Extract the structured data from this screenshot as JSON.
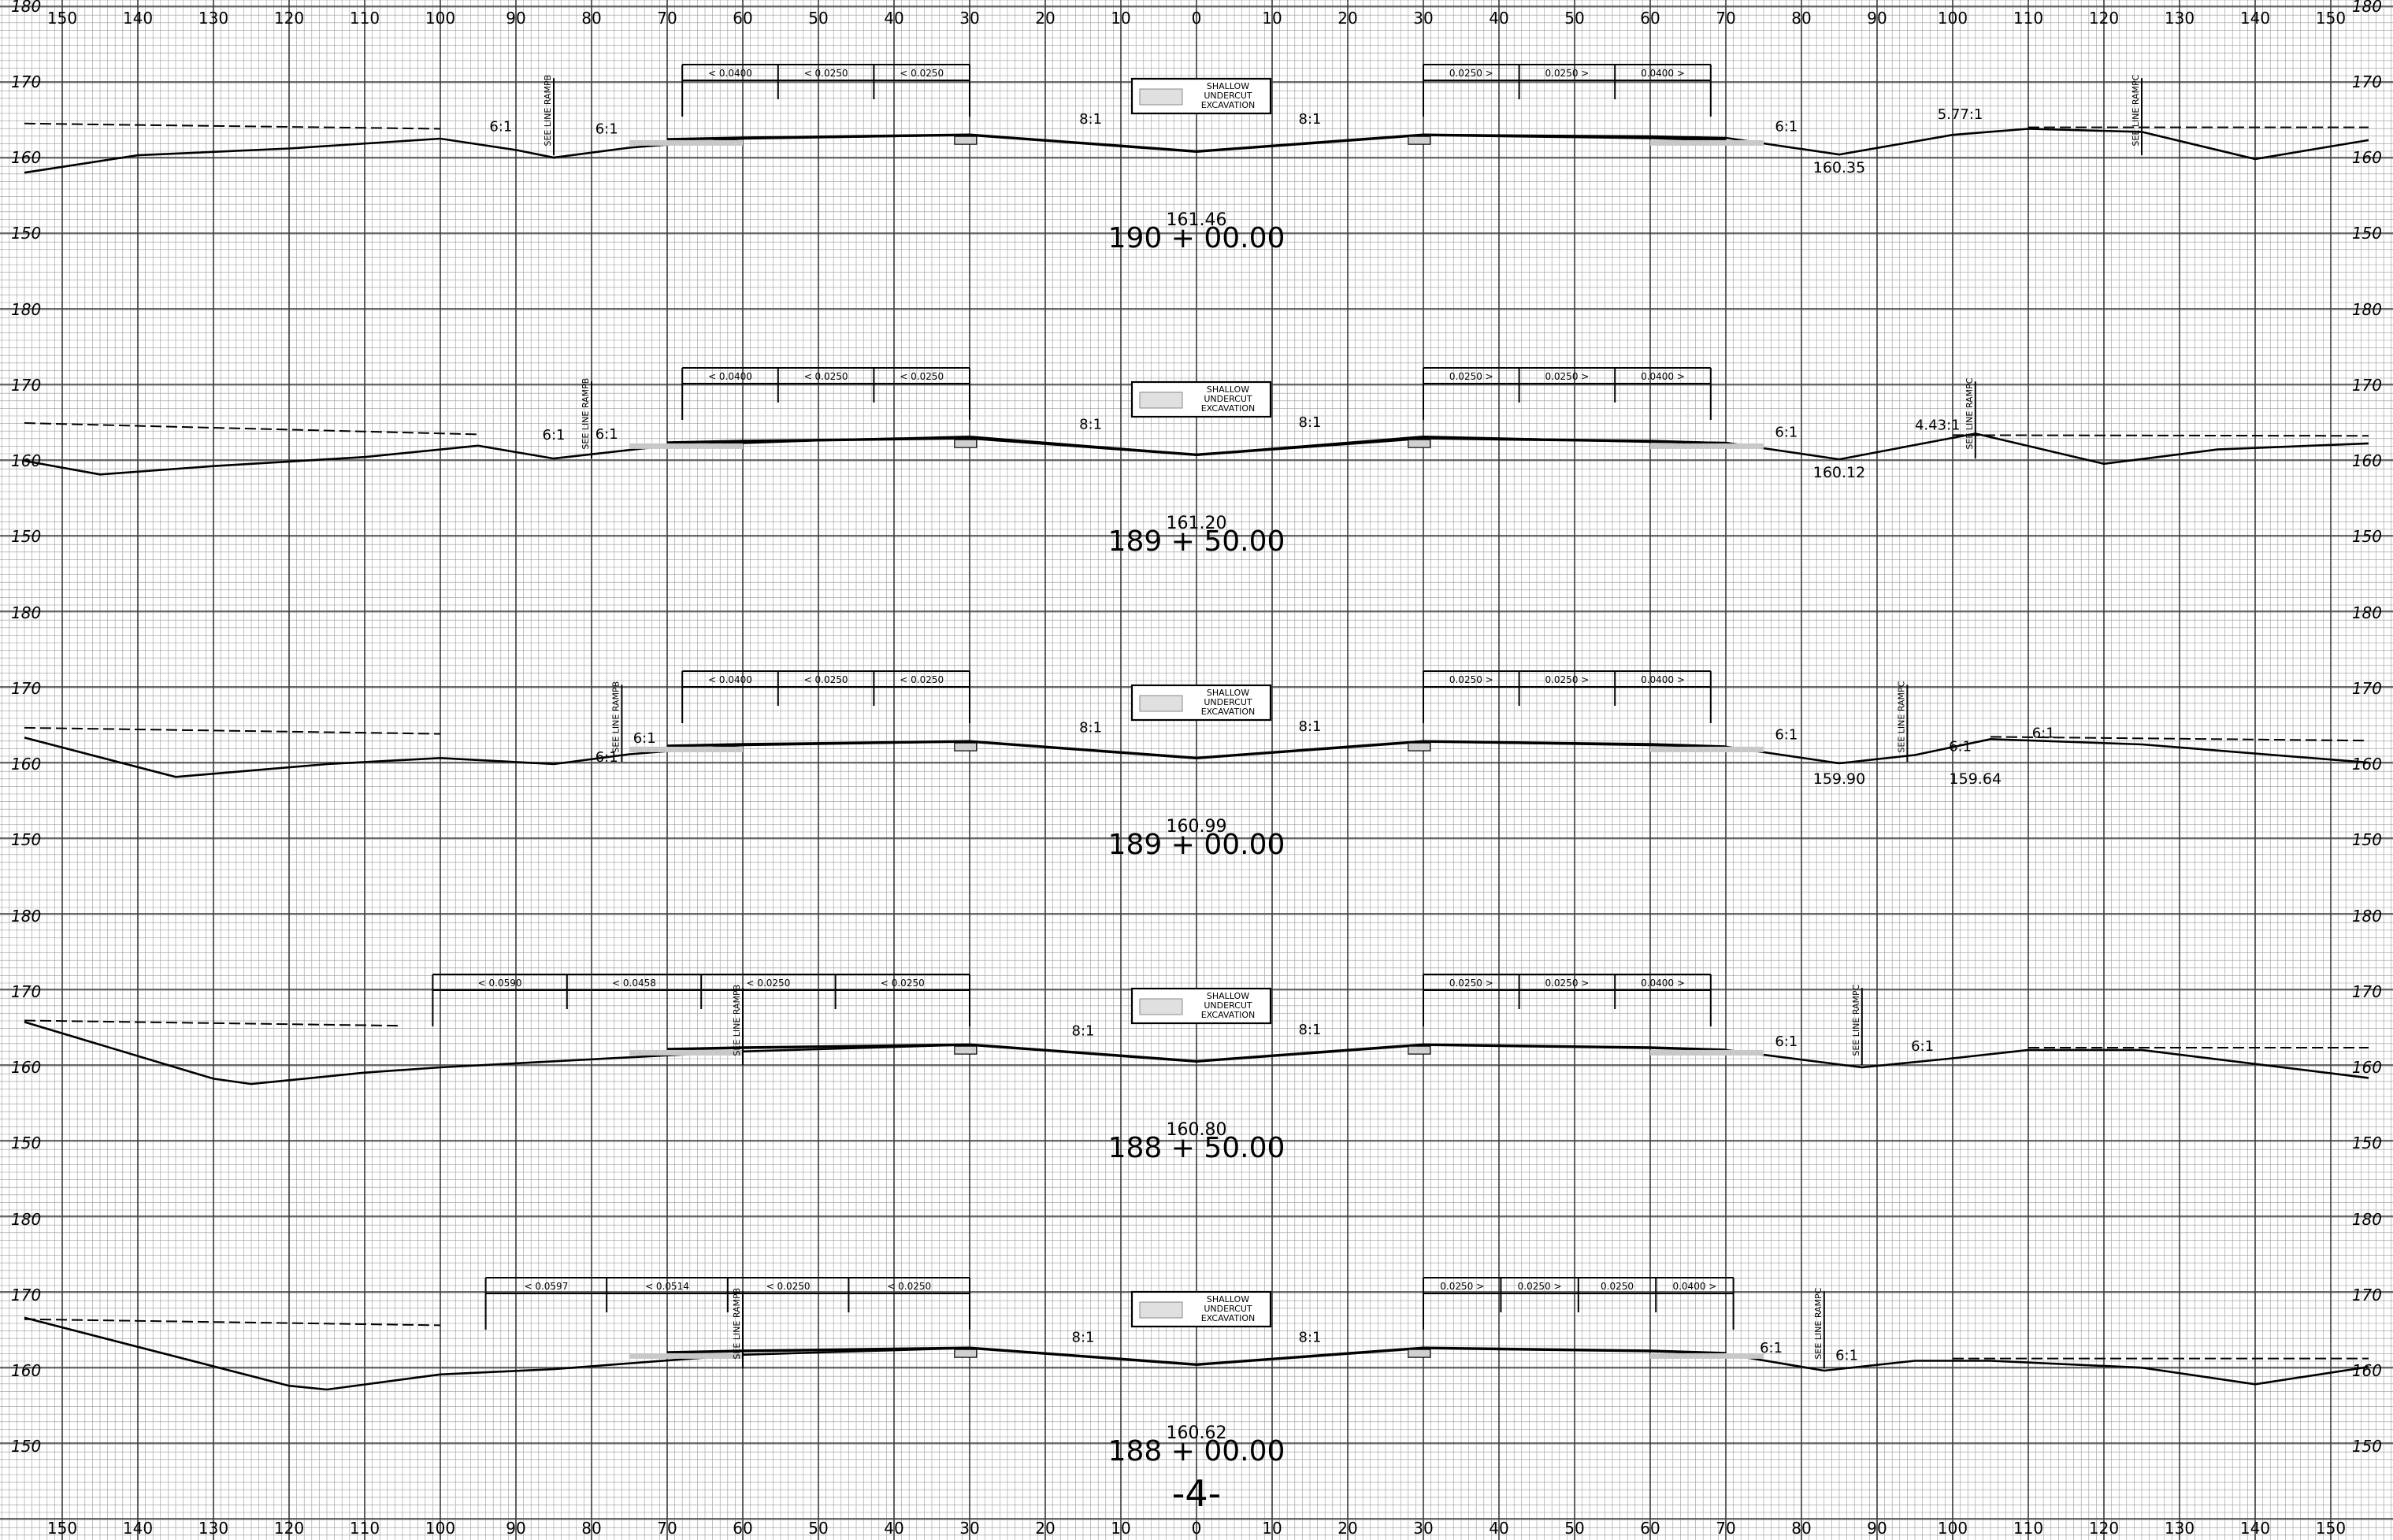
{
  "scale": {
    "top_labels": [
      "150",
      "140",
      "130",
      "120",
      "110",
      "100",
      "90",
      "80",
      "70",
      "60",
      "50",
      "40",
      "30",
      "20",
      "10",
      "0",
      "10",
      "20",
      "30",
      "40",
      "50",
      "60",
      "70",
      "80",
      "90",
      "100",
      "110",
      "120",
      "130",
      "140",
      "150"
    ],
    "bottom_labels": [
      "150",
      "140",
      "130",
      "120",
      "110",
      "100",
      "90",
      "80",
      "70",
      "60",
      "50",
      "40",
      "30",
      "20",
      "10",
      "0",
      "10",
      "20",
      "30",
      "40",
      "50",
      "60",
      "70",
      "80",
      "90",
      "100",
      "110",
      "120",
      "130",
      "140",
      "150"
    ],
    "elevation_labels": [
      "180",
      "170",
      "160",
      "150"
    ]
  },
  "legend": {
    "lines": [
      "SHALLOW",
      "UNDERCUT",
      "EXCAVATION"
    ]
  },
  "see_line_labels": {
    "ramp_b": "SEE LINE RAMPB",
    "ramp_c": "SEE LINE RAMPC"
  },
  "sections": [
    {
      "station": "190 + 00.00",
      "centerline_elev": "161.46",
      "left_slopes": [
        "< 0.0400",
        "< 0.0250",
        "< 0.0250"
      ],
      "right_slopes": [
        "0.0250 >",
        "0.0250 >",
        "0.0400 >"
      ],
      "slope_labels": [
        "6:1",
        "6:1",
        "8:1",
        "8:1",
        "6:1",
        "5.77:1"
      ],
      "elevations": [
        "160.35"
      ]
    },
    {
      "station": "189 + 50.00",
      "centerline_elev": "161.20",
      "left_slopes": [
        "< 0.0400",
        "< 0.0250",
        "< 0.0250"
      ],
      "right_slopes": [
        "0.0250 >",
        "0.0250 >",
        "0.0400 >"
      ],
      "slope_labels": [
        "6:1",
        "6:1",
        "8:1",
        "8:1",
        "6:1",
        "4.43:1"
      ],
      "elevations": [
        "160.12"
      ]
    },
    {
      "station": "189 + 00.00",
      "centerline_elev": "160.99",
      "left_slopes": [
        "< 0.0400",
        "< 0.0250",
        "< 0.0250"
      ],
      "right_slopes": [
        "0.0250 >",
        "0.0250 >",
        "0.0400 >"
      ],
      "slope_labels": [
        "6:1",
        "6:1",
        "8:1",
        "8:1",
        "6:1",
        "6:1",
        "6:1"
      ],
      "elevations": [
        "159.90",
        "159.64"
      ]
    },
    {
      "station": "188 + 50.00",
      "centerline_elev": "160.80",
      "left_slopes": [
        "< 0.0590",
        "< 0.0458",
        "< 0.0250",
        "< 0.0250"
      ],
      "right_slopes": [
        "0.0250 >",
        "0.0250 >",
        "0.0400 >"
      ],
      "slope_labels": [
        "8:1",
        "8:1",
        "6:1",
        "6:1"
      ],
      "elevations": []
    },
    {
      "station": "188 + 00.00",
      "centerline_elev": "160.62",
      "left_slopes": [
        "< 0.0597",
        "< 0.0514",
        "< 0.0250",
        "< 0.0250"
      ],
      "right_slopes": [
        "0.0250 >",
        "0.0250 >",
        "0.0250",
        "0.0400 >"
      ],
      "slope_labels": [
        "8:1",
        "8:1",
        "6:1",
        "6:1"
      ],
      "elevations": []
    }
  ],
  "sheet_number": "-4-"
}
